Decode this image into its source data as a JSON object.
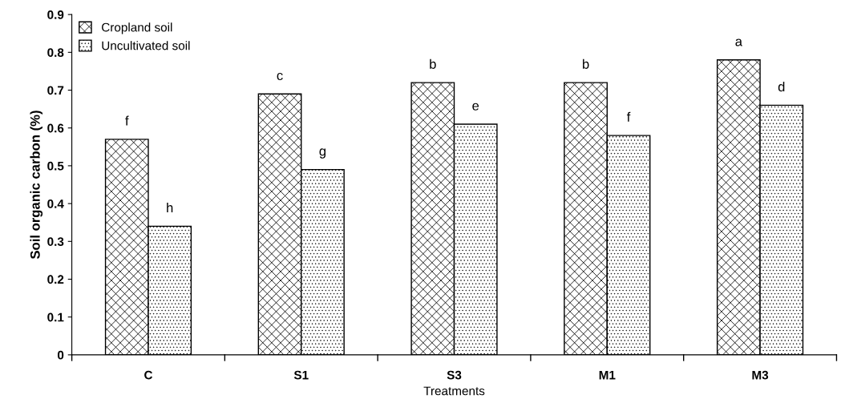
{
  "chart_data": {
    "type": "bar",
    "xlabel": "Treatments",
    "ylabel": "Soil organic carbon (%)",
    "categories": [
      "C",
      "S1",
      "S3",
      "M1",
      "M3"
    ],
    "series": [
      {
        "name": "Cropland soil",
        "color": "#000000",
        "values": [
          0.57,
          0.69,
          0.72,
          0.72,
          0.78
        ],
        "value_labels": [
          "f",
          "c",
          "b",
          "b",
          "a"
        ]
      },
      {
        "name": "Uncultivated soil",
        "color": "#000000",
        "values": [
          0.34,
          0.49,
          0.61,
          0.58,
          0.66
        ],
        "value_labels": [
          "h",
          "g",
          "e",
          "f",
          "d"
        ]
      }
    ],
    "ylim": [
      0,
      0.9
    ],
    "yticks": [
      0,
      0.1,
      0.2,
      0.3,
      0.4,
      0.5,
      0.6,
      0.7,
      0.8,
      0.9
    ],
    "grid": false,
    "legend": "top left"
  }
}
